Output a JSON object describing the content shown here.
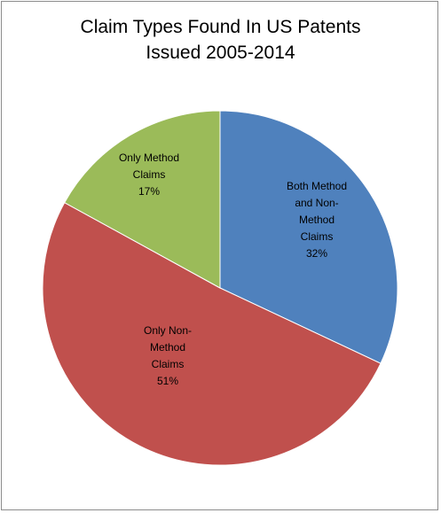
{
  "chart_data": {
    "type": "pie",
    "title_lines": [
      "Claim Types Found In US Patents",
      "Issued 2005-2014"
    ],
    "slices": [
      {
        "label_lines": [
          "Both Method",
          "and Non-",
          "Method",
          "Claims"
        ],
        "value": 32,
        "percent_label": "32%",
        "color": "#4f81bd"
      },
      {
        "label_lines": [
          "Only Non-",
          "Method",
          "Claims"
        ],
        "value": 51,
        "percent_label": "51%",
        "color": "#c0504d"
      },
      {
        "label_lines": [
          "Only Method",
          "Claims"
        ],
        "value": 17,
        "percent_label": "17%",
        "color": "#9bbb59"
      }
    ],
    "start": "12 o'clock",
    "direction": "clockwise",
    "legend": "none"
  }
}
